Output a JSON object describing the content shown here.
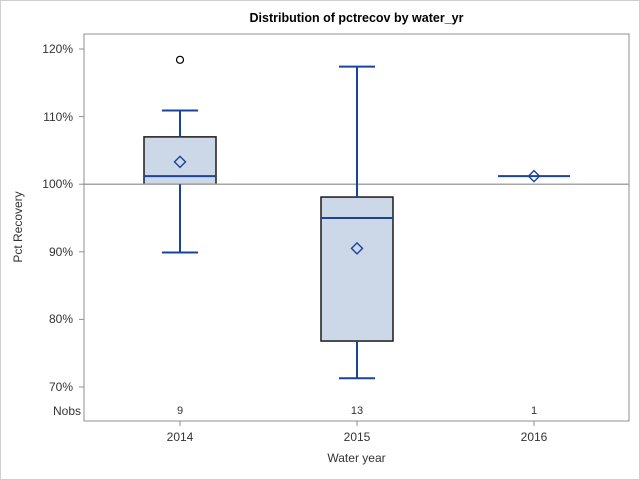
{
  "chart_data": {
    "type": "boxplot",
    "title": "Distribution of pctrecov by water_yr",
    "xlabel": "Water year",
    "ylabel": "Pct Recovery",
    "nobs_label": "Nobs",
    "categories": [
      "2014",
      "2015",
      "2016"
    ],
    "nobs": [
      "9",
      "13",
      "1"
    ],
    "yticks": [
      {
        "value": 120,
        "label": "120%"
      },
      {
        "value": 110,
        "label": "110%"
      },
      {
        "value": 100,
        "label": "100%"
      },
      {
        "value": 90,
        "label": "90%"
      },
      {
        "value": 80,
        "label": "80%"
      },
      {
        "value": 70,
        "label": "70%"
      }
    ],
    "ylim": [
      65,
      122
    ],
    "reference_line_value": 100,
    "grid": false,
    "legend": "none",
    "series": [
      {
        "category": "2014",
        "n": 9,
        "whisker_low": 89.9,
        "q1": 100.0,
        "median": 101.2,
        "q3": 107.0,
        "whisker_high": 110.9,
        "mean": 103.3,
        "outliers": [
          118.4
        ]
      },
      {
        "category": "2015",
        "n": 13,
        "whisker_low": 71.3,
        "q1": 76.8,
        "median": 95.0,
        "q3": 98.1,
        "whisker_high": 117.4,
        "mean": 90.5,
        "outliers": []
      },
      {
        "category": "2016",
        "n": 1,
        "whisker_low": 101.2,
        "q1": 101.2,
        "median": 101.2,
        "q3": 101.2,
        "whisker_high": 101.2,
        "mean": 101.2,
        "outliers": []
      }
    ],
    "colors": {
      "box_fill": "#ccd7e8",
      "box_border": "#1a1a1a",
      "line_blue": "#1a449c",
      "reference_line": "#a6a6a6",
      "axis": "#8f8f8f",
      "text": "#333333",
      "outlier_stroke": "#000000",
      "frame_border": "#cfcfcf"
    }
  }
}
